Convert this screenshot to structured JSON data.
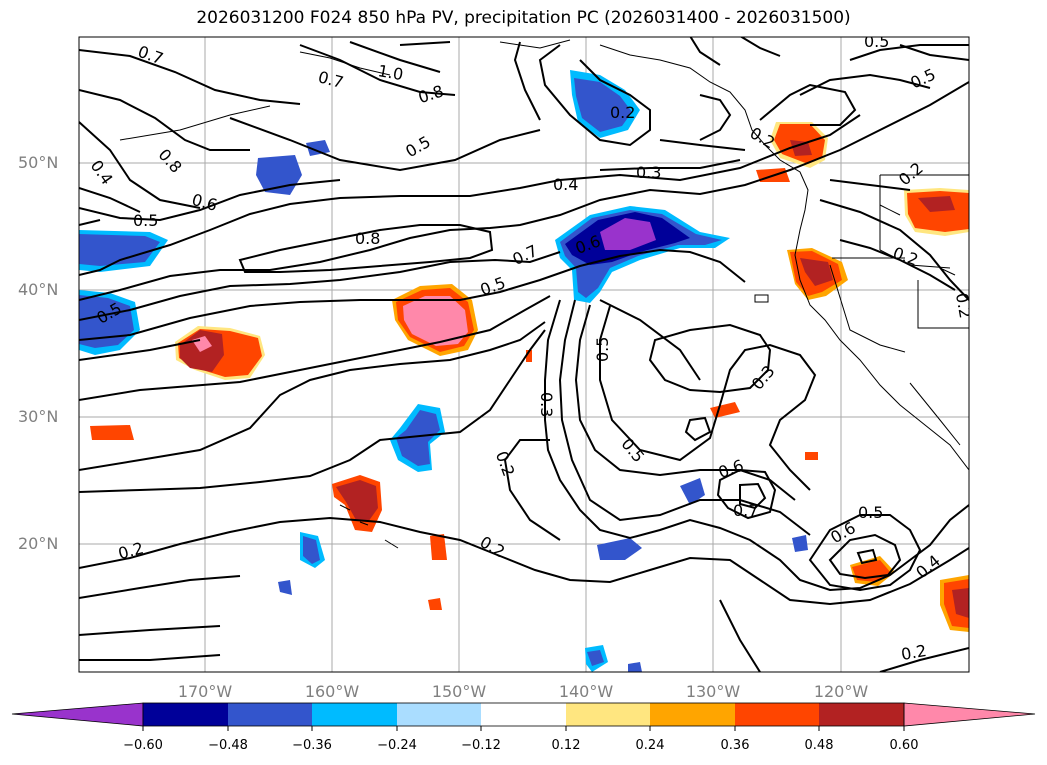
{
  "title": "2026031200 F024 850 hPa PV, precipitation PC (2026031400 - 2026031500)",
  "map": {
    "lat_labels": [
      "50°N",
      "40°N",
      "30°N",
      "20°N"
    ],
    "lon_labels": [
      "170°W",
      "160°W",
      "150°W",
      "140°W",
      "130°W",
      "120°W"
    ],
    "contour_labels": [
      "0.7",
      "1.0",
      "0.8",
      "0.5",
      "0.4",
      "0.8",
      "0.6",
      "0.5",
      "0.8",
      "0.7",
      "0.5",
      "0.4",
      "0.3",
      "0.2",
      "0.5",
      "0.5",
      "0.3",
      "0.3",
      "0.2",
      "0.5",
      "0.6",
      "0.7",
      "0.2",
      "0.6",
      "0.5",
      "0.4",
      "0.2",
      "0.2",
      "0.2",
      "0.2",
      "0.5",
      "0.2",
      "0.7",
      "0.5",
      "0.2",
      "0.6"
    ]
  },
  "colorbar": {
    "colors": [
      "#9933CC",
      "#000099",
      "#3355CC",
      "#00BBFF",
      "#AADDFF",
      "#FFFFFF",
      "#FFE680",
      "#FFA500",
      "#FF4500",
      "#B22222",
      "#FF88AA"
    ],
    "tick_labels": [
      "−0.60",
      "−0.48",
      "−0.36",
      "−0.24",
      "−0.12",
      "0.12",
      "0.24",
      "0.36",
      "0.48",
      "0.60"
    ]
  }
}
